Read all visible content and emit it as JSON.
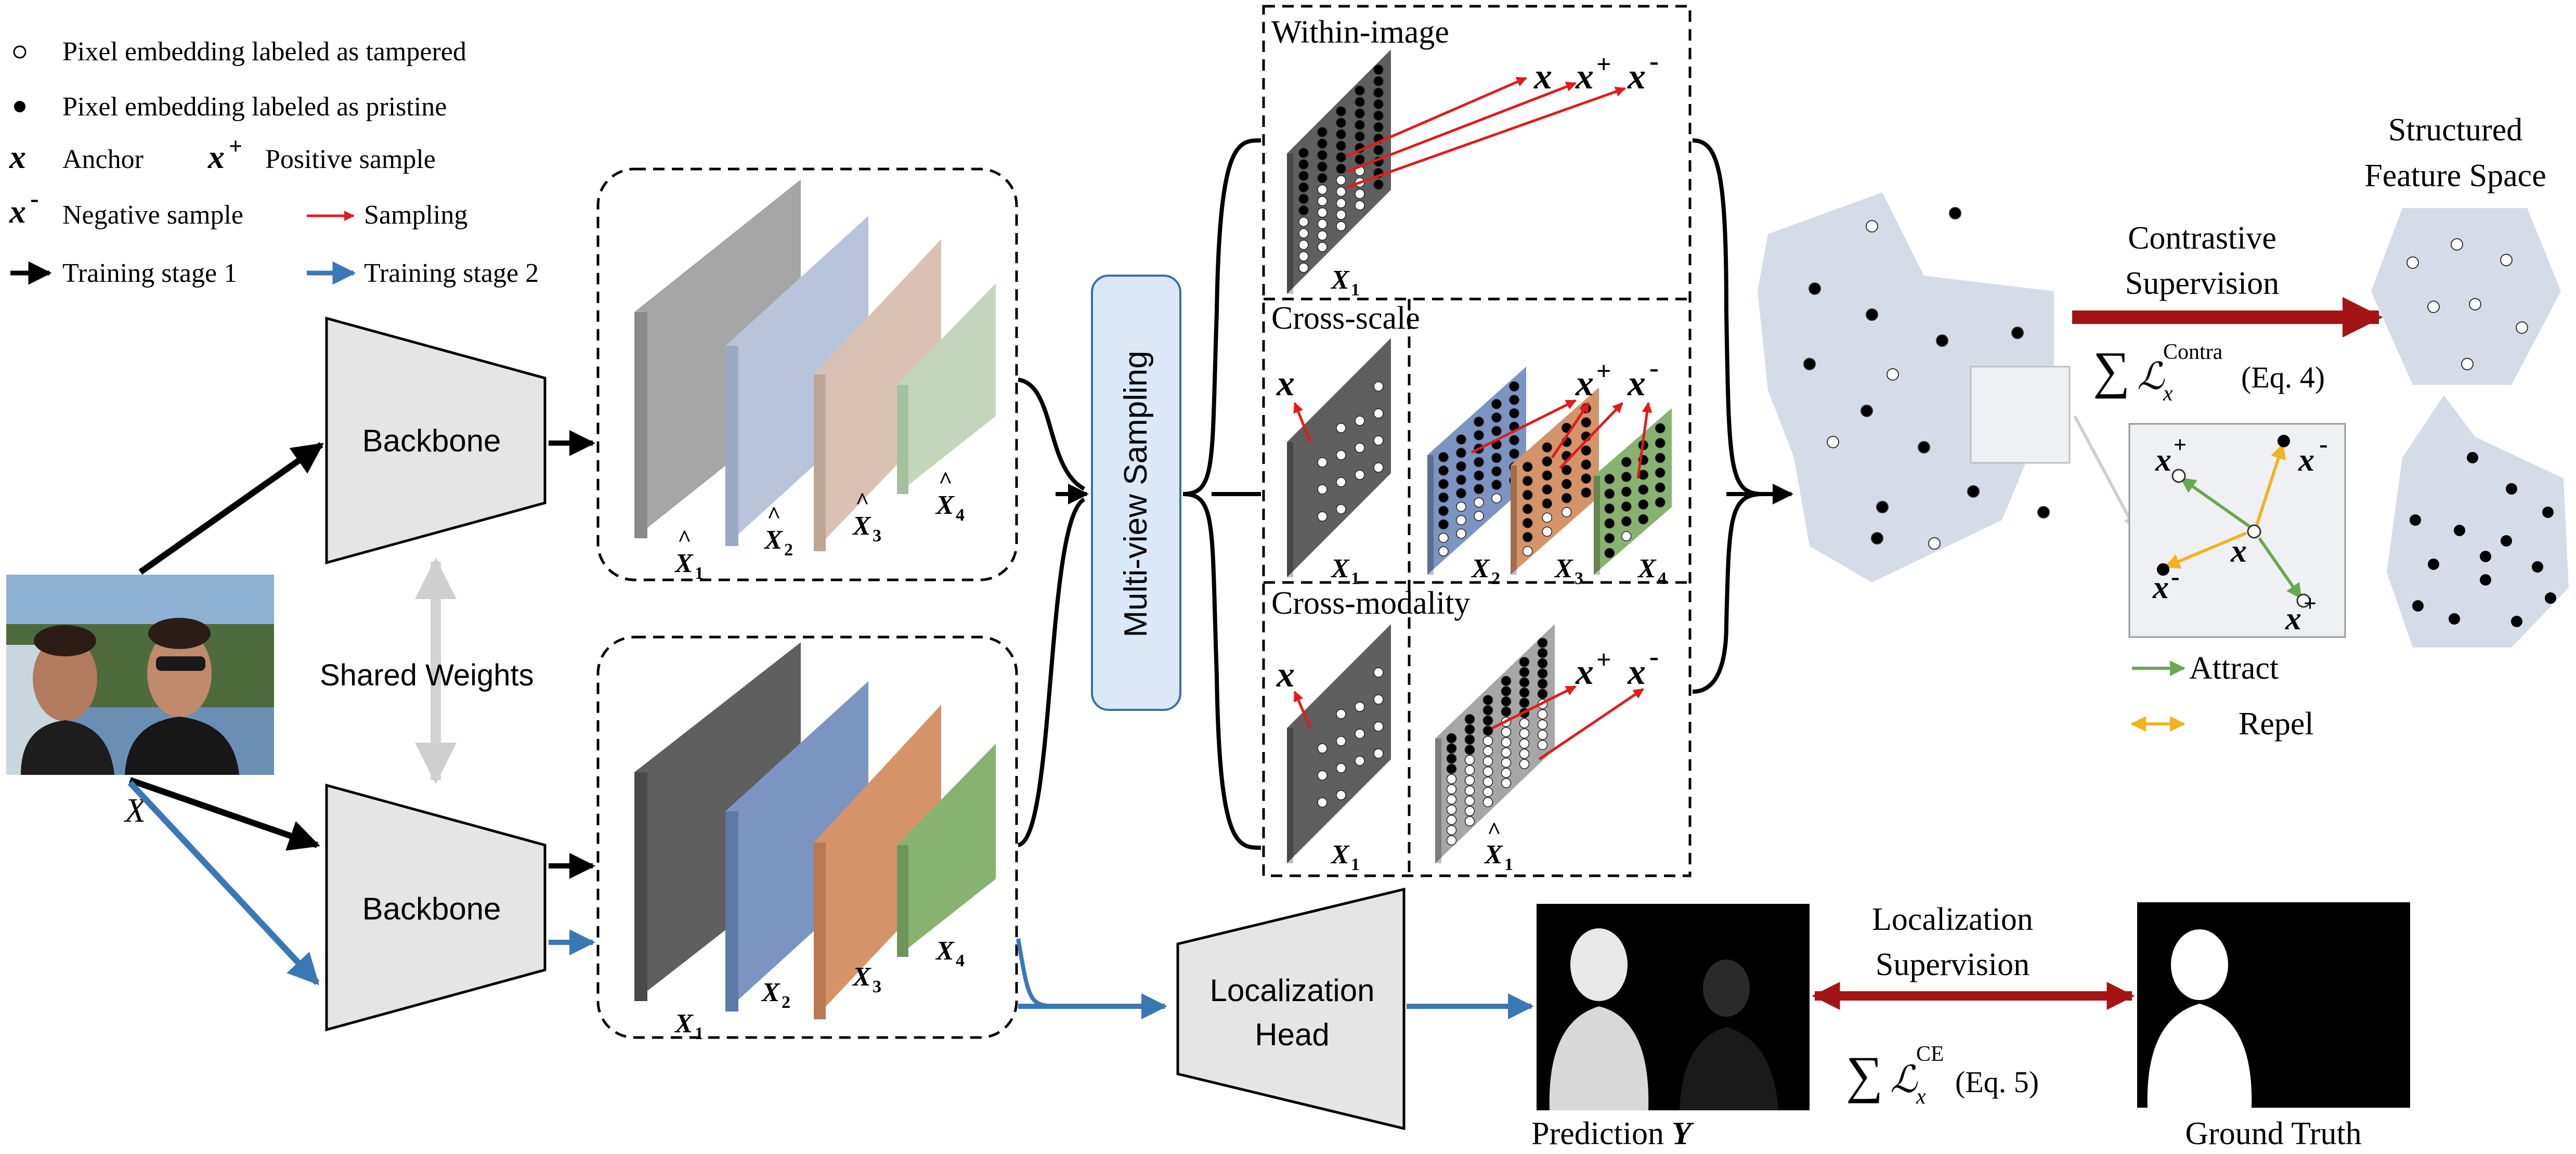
{
  "legend": {
    "tampered": "Pixel embedding labeled as tampered",
    "pristine": "Pixel embedding labeled as pristine",
    "anchor": "Anchor",
    "positive": "Positive sample",
    "negative": "Negative sample",
    "sampling": "Sampling",
    "stage1": "Training stage 1",
    "stage2": "Training stage 2"
  },
  "symbols": {
    "x": "x",
    "plus": "+",
    "minus": "-"
  },
  "input_label": "X",
  "backbone": "Backbone",
  "shared_weights": "Shared Weights",
  "feature_labels": {
    "hat": [
      "X̂1",
      "X̂2",
      "X̂3",
      "X̂4"
    ],
    "plain": [
      "X1",
      "X2",
      "X3",
      "X4"
    ]
  },
  "feature_label_parts": {
    "base": "X",
    "hat": "^",
    "subs": [
      "1",
      "2",
      "3",
      "4"
    ]
  },
  "multi_view": "Multi-view Sampling",
  "views": {
    "within": "Within-image",
    "cross_scale": "Cross-scale",
    "cross_modality": "Cross-modality"
  },
  "feature_space_title": [
    "Structured",
    "Feature Space"
  ],
  "contrastive": [
    "Contrastive",
    "Supervision"
  ],
  "contra_loss": {
    "sum": "∑",
    "L": "ℒ",
    "sup": "Contra",
    "sub": "x",
    "eq": "(Eq. 4)"
  },
  "attract": "Attract",
  "repel": "Repel",
  "localization_head": [
    "Localization",
    "Head"
  ],
  "localization_supervision": [
    "Localization",
    "Supervision"
  ],
  "ce_loss": {
    "sum": "∑",
    "L": "ℒ",
    "sup": "CE",
    "sub": "x",
    "eq": "(Eq. 5)"
  },
  "prediction": {
    "label": "Prediction",
    "var": "Y"
  },
  "ground_truth": "Ground Truth",
  "colors": {
    "black_arrow": "#000000",
    "blue_arrow": "#3a78b5",
    "red_sampling": "#e31a1c",
    "dark_red": "#a31515",
    "attract_green": "#6aa84f",
    "repel_yellow": "#f1b41d",
    "feature_space": "#d5dce8",
    "hat_gray": "#a6a6a6",
    "hat_blue": "#b8c4d9",
    "hat_tan": "#d9c2b3",
    "hat_green": "#c3d6bc",
    "plain_gray": "#5f5f5f",
    "plain_blue": "#7b94c2",
    "plain_orange": "#d5936a",
    "plain_green": "#87b26f"
  }
}
